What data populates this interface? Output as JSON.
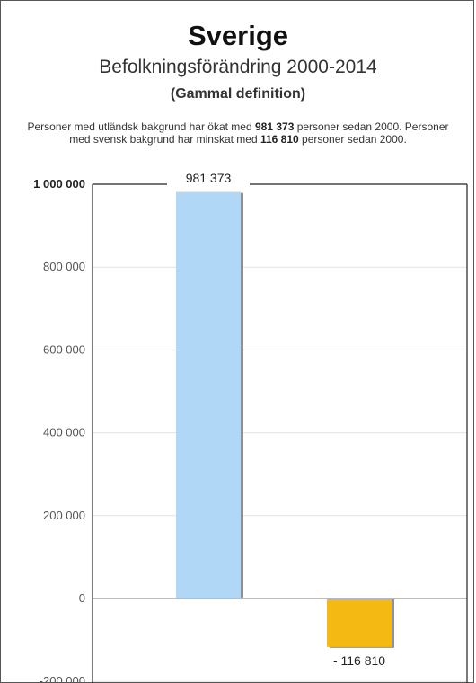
{
  "title": "Sverige",
  "subtitle": "Befolkningsförändring 2000-2014",
  "subtitle2": "(Gammal definition)",
  "description": {
    "part1": "Personer med utländsk bakgrund har ökat med ",
    "value1": "981 373",
    "part2": " personer sedan 2000. Personer med svensk bakgrund har minskat med ",
    "value2": "116 810",
    "part3": " personer sedan 2000."
  },
  "colors": {
    "bar_foreign": "#b0d8f6",
    "bar_swedish": "#f4b912",
    "grid": "#e3e3e3",
    "axis": "#222222",
    "zero_line": "#bbbbbb"
  },
  "chart_data": {
    "type": "bar",
    "categories": [
      "",
      ""
    ],
    "values": [
      981373,
      -116810
    ],
    "data_labels": [
      "981 373",
      "- 116 810"
    ],
    "ylim": [
      -200000,
      1000000
    ],
    "yticks": [
      1000000,
      800000,
      600000,
      400000,
      200000,
      0,
      -200000
    ],
    "ytick_labels": [
      "1 000 000",
      "800 000",
      "600 000",
      "400 000",
      "200 000",
      "0",
      "-200 000"
    ],
    "grid": true,
    "xlabel": "",
    "ylabel": ""
  }
}
